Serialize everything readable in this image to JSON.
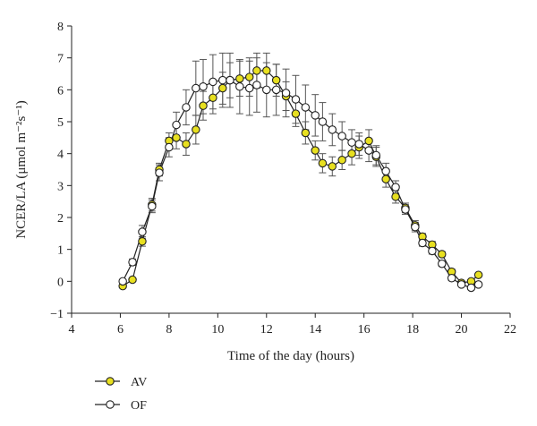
{
  "chart_data": {
    "type": "line",
    "xlabel": "Time of the day (hours)",
    "ylabel": "NCER/LA (μmol m⁻²s⁻¹)",
    "xlim": [
      4,
      22
    ],
    "ylim": [
      -1,
      8
    ],
    "x_ticks": [
      "4",
      "6",
      "8",
      "10",
      "12",
      "14",
      "16",
      "18",
      "20",
      "22"
    ],
    "y_ticks": [
      "−1",
      "0",
      "1",
      "2",
      "3",
      "4",
      "5",
      "6",
      "7",
      "8"
    ],
    "grid": false,
    "legend_position": "bottom-left",
    "series": [
      {
        "name": "AV",
        "marker_fill": "#e8e020",
        "points": [
          {
            "x": 6.1,
            "y": -0.15,
            "err": 0.05
          },
          {
            "x": 6.5,
            "y": 0.05,
            "err": 0.05
          },
          {
            "x": 6.9,
            "y": 1.25,
            "err": 0.15
          },
          {
            "x": 7.3,
            "y": 2.4,
            "err": 0.2
          },
          {
            "x": 7.6,
            "y": 3.5,
            "err": 0.2
          },
          {
            "x": 8.0,
            "y": 4.4,
            "err": 0.25
          },
          {
            "x": 8.3,
            "y": 4.5,
            "err": 0.35
          },
          {
            "x": 8.7,
            "y": 4.3,
            "err": 0.35
          },
          {
            "x": 9.1,
            "y": 4.75,
            "err": 0.45
          },
          {
            "x": 9.4,
            "y": 5.5,
            "err": 0.45
          },
          {
            "x": 9.8,
            "y": 5.75,
            "err": 0.5
          },
          {
            "x": 10.2,
            "y": 6.05,
            "err": 0.5
          },
          {
            "x": 10.5,
            "y": 6.3,
            "err": 0.55
          },
          {
            "x": 10.9,
            "y": 6.35,
            "err": 0.55
          },
          {
            "x": 11.3,
            "y": 6.4,
            "err": 0.6
          },
          {
            "x": 11.6,
            "y": 6.6,
            "err": 0.55
          },
          {
            "x": 12.0,
            "y": 6.6,
            "err": 0.55
          },
          {
            "x": 12.4,
            "y": 6.3,
            "err": 0.5
          },
          {
            "x": 12.8,
            "y": 5.8,
            "err": 0.45
          },
          {
            "x": 13.2,
            "y": 5.25,
            "err": 0.4
          },
          {
            "x": 13.6,
            "y": 4.65,
            "err": 0.35
          },
          {
            "x": 14.0,
            "y": 4.1,
            "err": 0.3
          },
          {
            "x": 14.3,
            "y": 3.7,
            "err": 0.3
          },
          {
            "x": 14.7,
            "y": 3.6,
            "err": 0.3
          },
          {
            "x": 15.1,
            "y": 3.8,
            "err": 0.3
          },
          {
            "x": 15.5,
            "y": 4.0,
            "err": 0.35
          },
          {
            "x": 15.8,
            "y": 4.2,
            "err": 0.35
          },
          {
            "x": 16.2,
            "y": 4.4,
            "err": 0.35
          },
          {
            "x": 16.5,
            "y": 3.9,
            "err": 0.3
          },
          {
            "x": 16.9,
            "y": 3.2,
            "err": 0.25
          },
          {
            "x": 17.3,
            "y": 2.65,
            "err": 0.2
          },
          {
            "x": 17.7,
            "y": 2.3,
            "err": 0.15
          },
          {
            "x": 18.1,
            "y": 1.75,
            "err": 0.15
          },
          {
            "x": 18.4,
            "y": 1.4,
            "err": 0.1
          },
          {
            "x": 18.8,
            "y": 1.15,
            "err": 0.1
          },
          {
            "x": 19.2,
            "y": 0.85,
            "err": 0.08
          },
          {
            "x": 19.6,
            "y": 0.3,
            "err": 0.08
          },
          {
            "x": 20.0,
            "y": -0.05,
            "err": 0.05
          },
          {
            "x": 20.4,
            "y": 0.0,
            "err": 0.05
          },
          {
            "x": 20.7,
            "y": 0.2,
            "err": 0.05
          }
        ]
      },
      {
        "name": "OF",
        "marker_fill": "#ffffff",
        "points": [
          {
            "x": 6.1,
            "y": 0.0,
            "err": 0.05
          },
          {
            "x": 6.5,
            "y": 0.6,
            "err": 0.1
          },
          {
            "x": 6.9,
            "y": 1.55,
            "err": 0.2
          },
          {
            "x": 7.3,
            "y": 2.35,
            "err": 0.2
          },
          {
            "x": 7.6,
            "y": 3.4,
            "err": 0.25
          },
          {
            "x": 8.0,
            "y": 4.2,
            "err": 0.3
          },
          {
            "x": 8.3,
            "y": 4.9,
            "err": 0.4
          },
          {
            "x": 8.7,
            "y": 5.45,
            "err": 0.55
          },
          {
            "x": 9.1,
            "y": 6.05,
            "err": 0.85
          },
          {
            "x": 9.4,
            "y": 6.1,
            "err": 0.85
          },
          {
            "x": 9.8,
            "y": 6.25,
            "err": 0.85
          },
          {
            "x": 10.2,
            "y": 6.3,
            "err": 0.85
          },
          {
            "x": 10.5,
            "y": 6.3,
            "err": 0.85
          },
          {
            "x": 10.9,
            "y": 6.1,
            "err": 0.85
          },
          {
            "x": 11.3,
            "y": 6.05,
            "err": 0.85
          },
          {
            "x": 11.6,
            "y": 6.15,
            "err": 0.85
          },
          {
            "x": 12.0,
            "y": 6.0,
            "err": 0.85
          },
          {
            "x": 12.4,
            "y": 6.0,
            "err": 0.8
          },
          {
            "x": 12.8,
            "y": 5.9,
            "err": 0.75
          },
          {
            "x": 13.2,
            "y": 5.7,
            "err": 0.75
          },
          {
            "x": 13.6,
            "y": 5.45,
            "err": 0.7
          },
          {
            "x": 14.0,
            "y": 5.2,
            "err": 0.65
          },
          {
            "x": 14.3,
            "y": 5.0,
            "err": 0.6
          },
          {
            "x": 14.7,
            "y": 4.75,
            "err": 0.5
          },
          {
            "x": 15.1,
            "y": 4.55,
            "err": 0.45
          },
          {
            "x": 15.5,
            "y": 4.35,
            "err": 0.4
          },
          {
            "x": 15.8,
            "y": 4.3,
            "err": 0.35
          },
          {
            "x": 16.2,
            "y": 4.1,
            "err": 0.35
          },
          {
            "x": 16.5,
            "y": 3.95,
            "err": 0.3
          },
          {
            "x": 16.9,
            "y": 3.45,
            "err": 0.25
          },
          {
            "x": 17.3,
            "y": 2.95,
            "err": 0.2
          },
          {
            "x": 17.7,
            "y": 2.25,
            "err": 0.15
          },
          {
            "x": 18.1,
            "y": 1.7,
            "err": 0.15
          },
          {
            "x": 18.4,
            "y": 1.2,
            "err": 0.1
          },
          {
            "x": 18.8,
            "y": 0.95,
            "err": 0.1
          },
          {
            "x": 19.2,
            "y": 0.55,
            "err": 0.08
          },
          {
            "x": 19.6,
            "y": 0.1,
            "err": 0.08
          },
          {
            "x": 20.0,
            "y": -0.1,
            "err": 0.05
          },
          {
            "x": 20.4,
            "y": -0.2,
            "err": 0.05
          },
          {
            "x": 20.7,
            "y": -0.1,
            "err": 0.05
          }
        ]
      }
    ]
  }
}
